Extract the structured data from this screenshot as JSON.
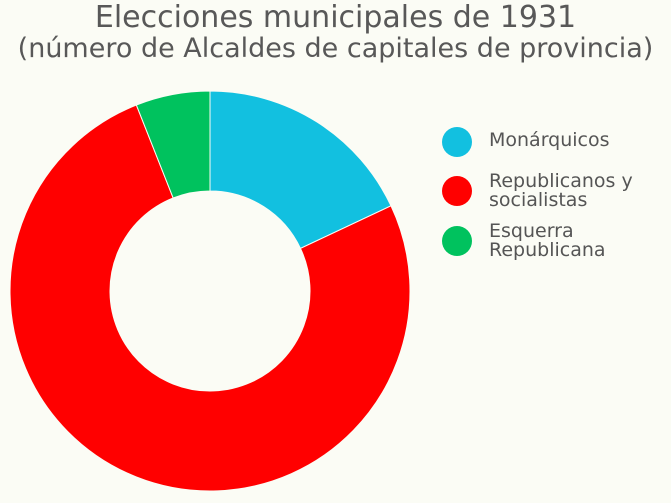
{
  "chart_data": {
    "type": "pie",
    "title_line1": "Elecciones municipales de 1931",
    "title_line2": "(número de Alcaldes de capitales de provincia)",
    "donut": true,
    "legend_position": "right",
    "categories": [
      "Monárquicos",
      "Republicanos y socialistas",
      "Esquerra Republicana"
    ],
    "values": [
      9,
      38,
      3
    ],
    "colors": [
      "#12c0e0",
      "#ff0000",
      "#00c25e"
    ],
    "background": "#fbfcf5"
  }
}
